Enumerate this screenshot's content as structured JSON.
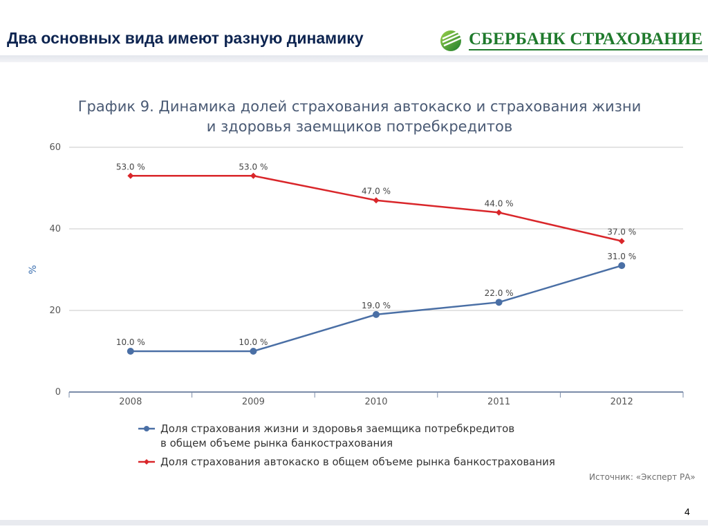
{
  "slide": {
    "title": "Два основных вида имеют разную динамику",
    "logo_text": "СБЕРБАНК СТРАХОВАНИЕ",
    "page_number": "4"
  },
  "chart": {
    "title_line1": "График 9. Динамика долей страхования автокаско и страхования жизни",
    "title_line2": "и здоровья заемщиков потребкредитов",
    "legend_item1_line1": "Доля страхования жизни и здоровья заемщика потребкредитов",
    "legend_item1_line2": "в общем объеме рынка банкострахования",
    "legend_item2": "Доля страхования автокаско в общем объеме рынка банкострахования",
    "source": "Источник: «Эксперт РА»"
  },
  "colors": {
    "series_blue": "#4a6fa5",
    "series_red": "#d9262a",
    "brand_green": "#1f7a2c"
  },
  "chart_data": {
    "type": "line",
    "title": "График 9. Динамика долей страхования автокаско и страхования жизни и здоровья заемщиков потребкредитов",
    "xlabel": "",
    "ylabel": "%",
    "ylim": [
      0,
      60
    ],
    "yticks": [
      "0",
      "20",
      "40",
      "60"
    ],
    "categories": [
      "2008",
      "2009",
      "2010",
      "2011",
      "2012"
    ],
    "grid": true,
    "legend_position": "bottom",
    "series": [
      {
        "name": "Доля страхования жизни и здоровья заемщика потребкредитов в общем объеме рынка банкострахования",
        "color": "#4a6fa5",
        "marker": "circle",
        "values": [
          10,
          10,
          19,
          22,
          31
        ],
        "labels": [
          "10.0 %",
          "10.0 %",
          "19.0 %",
          "22.0 %",
          "31.0 %"
        ]
      },
      {
        "name": "Доля страхования автокаско в общем объеме рынка банкострахования",
        "color": "#d9262a",
        "marker": "diamond",
        "values": [
          53,
          53,
          47,
          44,
          37
        ],
        "labels": [
          "53.0 %",
          "53.0 %",
          "47.0 %",
          "44.0 %",
          "37.0 %"
        ]
      }
    ]
  }
}
